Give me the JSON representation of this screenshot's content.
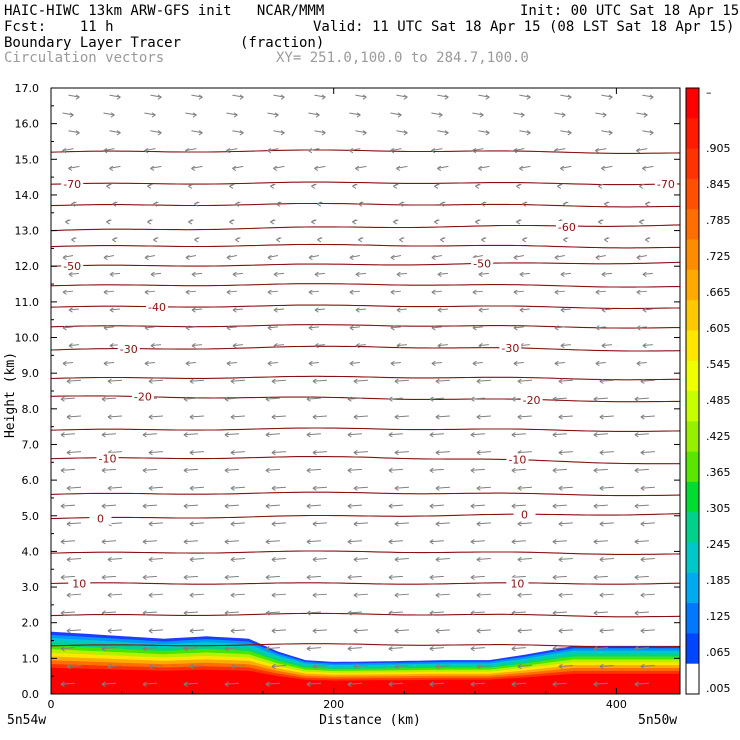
{
  "header": {
    "model_line": "HAIC-HIWC 13km ARW-GFS init   NCAR/MMM",
    "init_line": "Init: 00 UTC Sat 18 Apr 15",
    "fcst_line": "Fcst:    11 h",
    "valid_line": "Valid: 11 UTC Sat 18 Apr 15 (08 LST Sat 18 Apr 15)",
    "field_line": "Boundary Layer Tracer       (fraction)",
    "vector_line": "Circulation vectors",
    "xy_line": "XY= 251.0,100.0 to 284.7,100.0"
  },
  "chart_data": {
    "type": "heatmap",
    "title": "Boundary Layer Tracer",
    "units": "(fraction)",
    "xlabel": "Distance (km)",
    "ylabel": "Height (km)",
    "xlim": [
      0,
      445
    ],
    "ylim": [
      0,
      17
    ],
    "x_ticks": [
      "0",
      "200",
      "400"
    ],
    "x_tick_values": [
      0,
      200,
      400
    ],
    "y_ticks": [
      "0.0",
      "1.0",
      "2.0",
      "3.0",
      "4.0",
      "5.0",
      "6.0",
      "7.0",
      "8.0",
      "9.0",
      "10.0",
      "11.0",
      "12.0",
      "13.0",
      "14.0",
      "15.0",
      "16.0",
      "17.0"
    ],
    "x_end_labels": {
      "left": "5n54w",
      "right": "5n50w"
    },
    "colorbar": {
      "labels": [
        "–",
        ".905",
        ".845",
        ".785",
        ".725",
        ".665",
        ".605",
        ".545",
        ".485",
        ".425",
        ".365",
        ".305",
        ".245",
        ".185",
        ".125",
        ".065",
        ".005"
      ],
      "colors": [
        "#ff0000",
        "#ff1a00",
        "#ff3300",
        "#ff5000",
        "#ff6e00",
        "#ff8c00",
        "#ffaa00",
        "#ffc800",
        "#ffe600",
        "#f0ff00",
        "#c8ff00",
        "#96f000",
        "#5ae600",
        "#00dc32",
        "#00d28c",
        "#00c8c8",
        "#00aaf0",
        "#0078ff",
        "#0046ff",
        "#ffffff"
      ]
    },
    "tracer_top_km": [
      [
        0,
        1.75
      ],
      [
        40,
        1.65
      ],
      [
        80,
        1.55
      ],
      [
        110,
        1.62
      ],
      [
        140,
        1.55
      ],
      [
        160,
        1.2
      ],
      [
        180,
        0.95
      ],
      [
        200,
        0.9
      ],
      [
        240,
        0.92
      ],
      [
        280,
        0.95
      ],
      [
        310,
        0.95
      ],
      [
        335,
        1.1
      ],
      [
        370,
        1.35
      ],
      [
        410,
        1.35
      ],
      [
        445,
        1.35
      ]
    ],
    "temperature_contours": [
      {
        "value": 10,
        "label": "10",
        "heights_km": [
          3.1,
          3.1,
          3.1
        ],
        "label_positions": [
          [
            20,
            3.1
          ],
          [
            330,
            3.1
          ]
        ]
      },
      {
        "value": 0,
        "label": "0",
        "heights_km": [
          4.92,
          5.0,
          5.05
        ],
        "label_positions": [
          [
            35,
            4.92
          ],
          [
            335,
            5.03
          ]
        ]
      },
      {
        "value": -10,
        "label": "-10",
        "heights_km": [
          6.6,
          6.65,
          6.45
        ],
        "label_positions": [
          [
            40,
            6.6
          ],
          [
            330,
            6.58
          ]
        ]
      },
      {
        "value": -20,
        "label": "-20",
        "heights_km": [
          8.35,
          8.3,
          8.2
        ],
        "label_positions": [
          [
            65,
            8.35
          ],
          [
            340,
            8.25
          ]
        ]
      },
      {
        "value": -30,
        "label": "-30",
        "heights_km": [
          9.65,
          9.75,
          9.62
        ],
        "label_positions": [
          [
            55,
            9.68
          ],
          [
            325,
            9.7
          ]
        ]
      },
      {
        "value": -40,
        "label": "-40",
        "heights_km": [
          10.85,
          10.9,
          10.82
        ],
        "label_positions": [
          [
            75,
            10.85
          ]
        ]
      },
      {
        "value": -50,
        "label": "-50",
        "heights_km": [
          12.0,
          12.05,
          12.1
        ],
        "label_positions": [
          [
            15,
            12.0
          ],
          [
            305,
            12.07
          ]
        ]
      },
      {
        "value": -60,
        "label": "-60",
        "heights_km": [
          13.0,
          13.1,
          13.15
        ],
        "label_positions": [
          [
            365,
            13.1
          ]
        ]
      },
      {
        "value": -70,
        "label": "-70",
        "heights_km": [
          14.3,
          14.35,
          14.3
        ],
        "label_positions": [
          [
            15,
            14.3
          ],
          [
            435,
            14.3
          ]
        ]
      }
    ],
    "extra_isotherm_heights_km": [
      1.35,
      2.2,
      3.95,
      5.6,
      7.4,
      8.85,
      10.3,
      11.45,
      12.55,
      13.7,
      15.2
    ],
    "vectors": "circulation vectors (easterly flow, pointing left)"
  },
  "colors": {
    "contour": "#8b1010",
    "vector": "#808080",
    "header_grey": "#9a9a9a"
  }
}
